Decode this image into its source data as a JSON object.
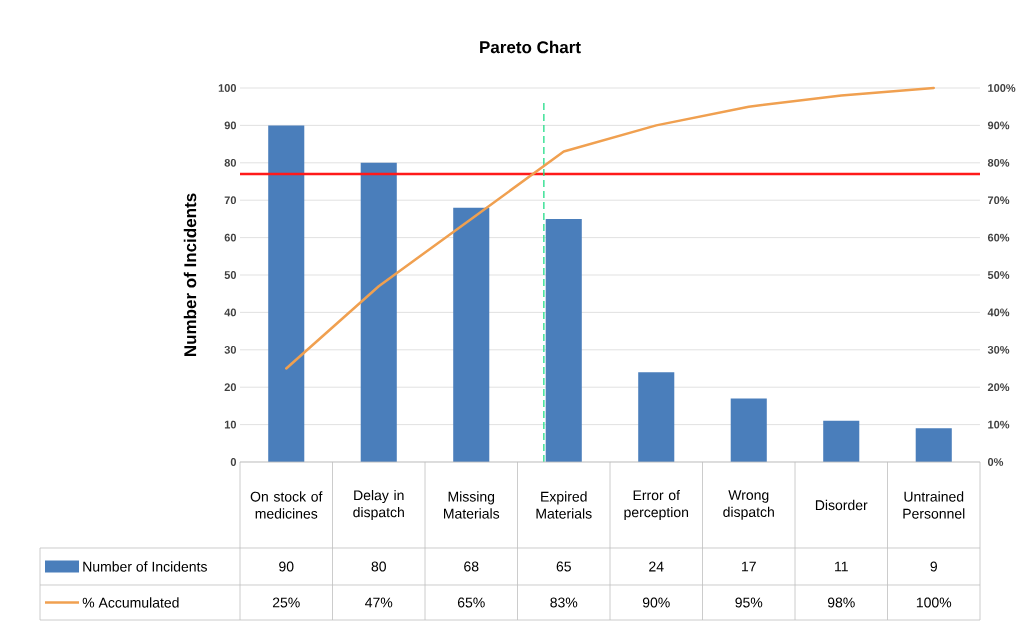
{
  "chart_data": {
    "type": "bar",
    "title": "Pareto Chart",
    "ylabel": "Number of Incidents",
    "categories": [
      "On stock of medicines",
      "Delay in dispatch",
      "Missing Materials",
      "Expired Materials",
      "Error of perception",
      "Wrong dispatch",
      "Disorder",
      "Untrained Personnel"
    ],
    "series": [
      {
        "name": "Number of Incidents",
        "color": "#4a7ebb",
        "values": [
          90,
          80,
          68,
          65,
          24,
          17,
          11,
          9
        ],
        "value_labels": [
          "90",
          "80",
          "68",
          "65",
          "24",
          "17",
          "11",
          "9"
        ]
      },
      {
        "name": "% Accumulated",
        "type": "line",
        "axis": "y2",
        "color": "#f0a050",
        "values": [
          25,
          47,
          65,
          83,
          90,
          95,
          98,
          100
        ],
        "value_labels": [
          "25%",
          "47%",
          "65%",
          "83%",
          "90%",
          "95%",
          "98%",
          "100%"
        ]
      }
    ],
    "ylim": [
      0,
      100
    ],
    "yticks": [
      0,
      10,
      20,
      30,
      40,
      50,
      60,
      70,
      80,
      90,
      100
    ],
    "y2lim": [
      0,
      100
    ],
    "y2ticks": [
      {
        "value": 0,
        "label": "0%"
      },
      {
        "value": 10,
        "label": "10%"
      },
      {
        "value": 20,
        "label": "20%"
      },
      {
        "value": 30,
        "label": "30%"
      },
      {
        "value": 40,
        "label": "40%"
      },
      {
        "value": 50,
        "label": "50%"
      },
      {
        "value": 60,
        "label": "60%"
      },
      {
        "value": 70,
        "label": "70%"
      },
      {
        "value": 80,
        "label": "80%"
      },
      {
        "value": 90,
        "label": "90%"
      },
      {
        "value": 100,
        "label": "100%"
      }
    ],
    "ref_lines": [
      {
        "axis": "y",
        "value": 77,
        "color": "#ff1a1a",
        "line_style": "solid"
      },
      {
        "axis": "x",
        "value": "Expired Materials",
        "color": "#22dd88",
        "line_style": "dashed"
      }
    ],
    "grid": "y",
    "legend": "bottom left"
  }
}
